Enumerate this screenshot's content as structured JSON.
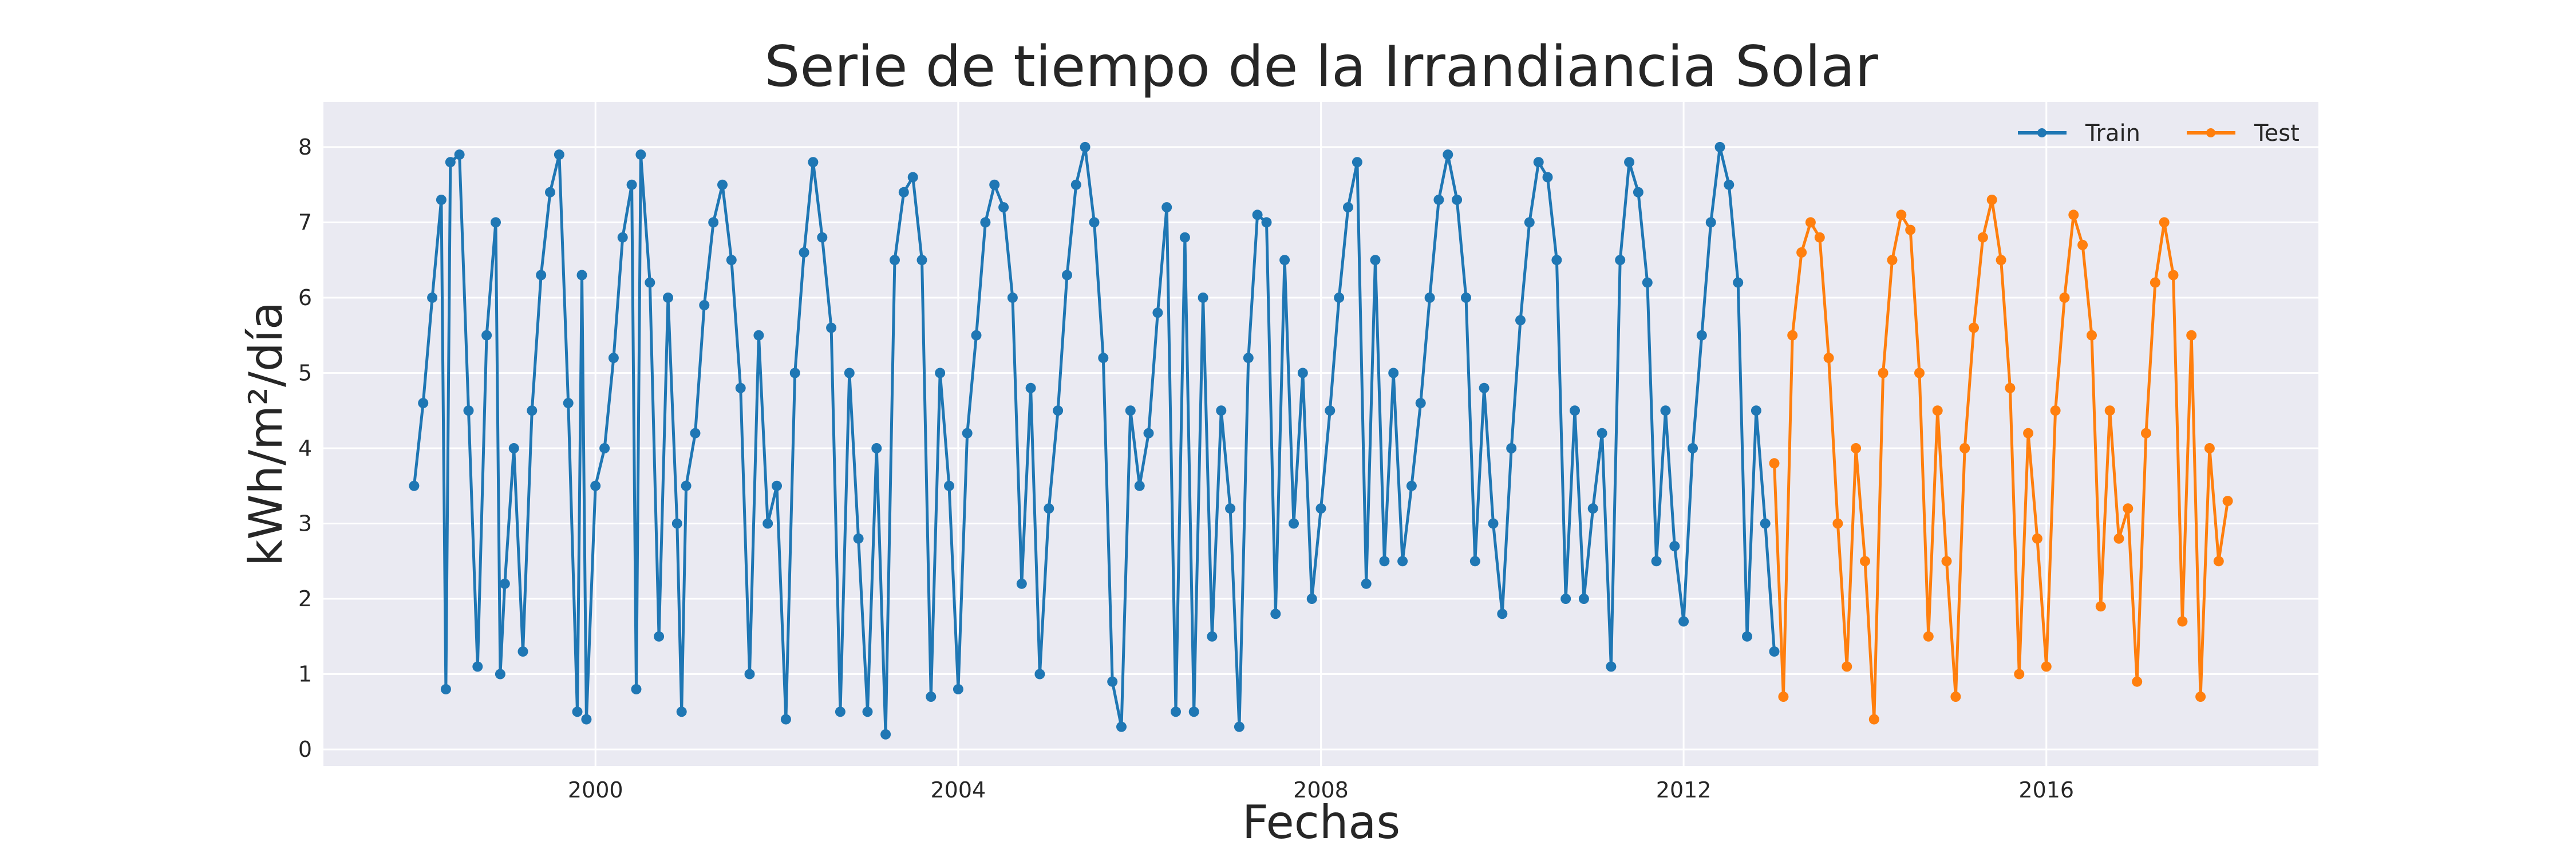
{
  "chart_data": {
    "type": "line",
    "title": "Serie de tiempo de la Irrandiancia Solar",
    "xlabel": "Fechas",
    "ylabel": "kWh/m²/día",
    "xlim": [
      1997.0,
      2019.0
    ],
    "ylim": [
      -0.22,
      8.6
    ],
    "x_ticks": [
      2000,
      2004,
      2008,
      2012,
      2016
    ],
    "x_tick_labels": [
      "2000",
      "2004",
      "2008",
      "2012",
      "2016"
    ],
    "y_ticks": [
      0,
      1,
      2,
      3,
      4,
      5,
      6,
      7,
      8
    ],
    "y_tick_labels": [
      "0",
      "1",
      "2",
      "3",
      "4",
      "5",
      "6",
      "7",
      "8"
    ],
    "grid": true,
    "legend_position": "top-right",
    "x_units": "years (decimal)",
    "series": [
      {
        "name": "Train",
        "color": "#1f77b4",
        "marker": "circle",
        "x_range": [
          1998.0,
          2013.0
        ],
        "points": [
          [
            1998.0,
            3.5
          ],
          [
            1998.1,
            4.6
          ],
          [
            1998.2,
            6.0
          ],
          [
            1998.3,
            7.3
          ],
          [
            1998.35,
            0.8
          ],
          [
            1998.4,
            7.8
          ],
          [
            1998.5,
            7.9
          ],
          [
            1998.6,
            4.5
          ],
          [
            1998.7,
            1.1
          ],
          [
            1998.8,
            5.5
          ],
          [
            1998.9,
            7.0
          ],
          [
            1998.95,
            1.0
          ],
          [
            1999.0,
            2.2
          ],
          [
            1999.1,
            4.0
          ],
          [
            1999.2,
            1.3
          ],
          [
            1999.3,
            4.5
          ],
          [
            1999.4,
            6.3
          ],
          [
            1999.5,
            7.4
          ],
          [
            1999.6,
            7.9
          ],
          [
            1999.7,
            4.6
          ],
          [
            1999.8,
            0.5
          ],
          [
            1999.85,
            6.3
          ],
          [
            1999.9,
            0.4
          ],
          [
            2000.0,
            3.5
          ],
          [
            2000.1,
            4.0
          ],
          [
            2000.2,
            5.2
          ],
          [
            2000.3,
            6.8
          ],
          [
            2000.4,
            7.5
          ],
          [
            2000.45,
            0.8
          ],
          [
            2000.5,
            7.9
          ],
          [
            2000.6,
            6.2
          ],
          [
            2000.7,
            1.5
          ],
          [
            2000.8,
            6.0
          ],
          [
            2000.9,
            3.0
          ],
          [
            2000.95,
            0.5
          ],
          [
            2001.0,
            3.5
          ],
          [
            2001.1,
            4.2
          ],
          [
            2001.2,
            5.9
          ],
          [
            2001.3,
            7.0
          ],
          [
            2001.4,
            7.5
          ],
          [
            2001.5,
            6.5
          ],
          [
            2001.6,
            4.8
          ],
          [
            2001.7,
            1.0
          ],
          [
            2001.8,
            5.5
          ],
          [
            2001.9,
            3.0
          ],
          [
            2002.0,
            3.5
          ],
          [
            2002.1,
            0.4
          ],
          [
            2002.2,
            5.0
          ],
          [
            2002.3,
            6.6
          ],
          [
            2002.4,
            7.8
          ],
          [
            2002.5,
            6.8
          ],
          [
            2002.6,
            5.6
          ],
          [
            2002.7,
            0.5
          ],
          [
            2002.8,
            5.0
          ],
          [
            2002.9,
            2.8
          ],
          [
            2003.0,
            0.5
          ],
          [
            2003.1,
            4.0
          ],
          [
            2003.2,
            0.2
          ],
          [
            2003.3,
            6.5
          ],
          [
            2003.4,
            7.4
          ],
          [
            2003.5,
            7.6
          ],
          [
            2003.6,
            6.5
          ],
          [
            2003.7,
            0.7
          ],
          [
            2003.8,
            5.0
          ],
          [
            2003.9,
            3.5
          ],
          [
            2004.0,
            0.8
          ],
          [
            2004.1,
            4.2
          ],
          [
            2004.2,
            5.5
          ],
          [
            2004.3,
            7.0
          ],
          [
            2004.4,
            7.5
          ],
          [
            2004.5,
            7.2
          ],
          [
            2004.6,
            6.0
          ],
          [
            2004.7,
            2.2
          ],
          [
            2004.8,
            4.8
          ],
          [
            2004.9,
            1.0
          ],
          [
            2005.0,
            3.2
          ],
          [
            2005.1,
            4.5
          ],
          [
            2005.2,
            6.3
          ],
          [
            2005.3,
            7.5
          ],
          [
            2005.4,
            8.0
          ],
          [
            2005.5,
            7.0
          ],
          [
            2005.6,
            5.2
          ],
          [
            2005.7,
            0.9
          ],
          [
            2005.8,
            0.3
          ],
          [
            2005.9,
            4.5
          ],
          [
            2006.0,
            3.5
          ],
          [
            2006.1,
            4.2
          ],
          [
            2006.2,
            5.8
          ],
          [
            2006.3,
            7.2
          ],
          [
            2006.4,
            0.5
          ],
          [
            2006.5,
            6.8
          ],
          [
            2006.6,
            0.5
          ],
          [
            2006.7,
            6.0
          ],
          [
            2006.8,
            1.5
          ],
          [
            2006.9,
            4.5
          ],
          [
            2007.0,
            3.2
          ],
          [
            2007.1,
            0.3
          ],
          [
            2007.2,
            5.2
          ],
          [
            2007.3,
            7.1
          ],
          [
            2007.4,
            7.0
          ],
          [
            2007.5,
            1.8
          ],
          [
            2007.6,
            6.5
          ],
          [
            2007.7,
            3.0
          ],
          [
            2007.8,
            5.0
          ],
          [
            2007.9,
            2.0
          ],
          [
            2008.0,
            3.2
          ],
          [
            2008.1,
            4.5
          ],
          [
            2008.2,
            6.0
          ],
          [
            2008.3,
            7.2
          ],
          [
            2008.4,
            7.8
          ],
          [
            2008.5,
            2.2
          ],
          [
            2008.6,
            6.5
          ],
          [
            2008.7,
            2.5
          ],
          [
            2008.8,
            5.0
          ],
          [
            2008.9,
            2.5
          ],
          [
            2009.0,
            3.5
          ],
          [
            2009.1,
            4.6
          ],
          [
            2009.2,
            6.0
          ],
          [
            2009.3,
            7.3
          ],
          [
            2009.4,
            7.9
          ],
          [
            2009.5,
            7.3
          ],
          [
            2009.6,
            6.0
          ],
          [
            2009.7,
            2.5
          ],
          [
            2009.8,
            4.8
          ],
          [
            2009.9,
            3.0
          ],
          [
            2010.0,
            1.8
          ],
          [
            2010.1,
            4.0
          ],
          [
            2010.2,
            5.7
          ],
          [
            2010.3,
            7.0
          ],
          [
            2010.4,
            7.8
          ],
          [
            2010.5,
            7.6
          ],
          [
            2010.6,
            6.5
          ],
          [
            2010.7,
            2.0
          ],
          [
            2010.8,
            4.5
          ],
          [
            2010.9,
            2.0
          ],
          [
            2011.0,
            3.2
          ],
          [
            2011.1,
            4.2
          ],
          [
            2011.2,
            1.1
          ],
          [
            2011.3,
            6.5
          ],
          [
            2011.4,
            7.8
          ],
          [
            2011.5,
            7.4
          ],
          [
            2011.6,
            6.2
          ],
          [
            2011.7,
            2.5
          ],
          [
            2011.8,
            4.5
          ],
          [
            2011.9,
            2.7
          ],
          [
            2012.0,
            1.7
          ],
          [
            2012.1,
            4.0
          ],
          [
            2012.2,
            5.5
          ],
          [
            2012.3,
            7.0
          ],
          [
            2012.4,
            8.0
          ],
          [
            2012.5,
            7.5
          ],
          [
            2012.6,
            6.2
          ],
          [
            2012.7,
            1.5
          ],
          [
            2012.8,
            4.5
          ],
          [
            2012.9,
            3.0
          ],
          [
            2013.0,
            1.3
          ]
        ]
      },
      {
        "name": "Test",
        "color": "#ff7f0e",
        "marker": "circle",
        "x_range": [
          2013.0,
          2018.0
        ],
        "points": [
          [
            2013.0,
            3.8
          ],
          [
            2013.1,
            0.7
          ],
          [
            2013.2,
            5.5
          ],
          [
            2013.3,
            6.6
          ],
          [
            2013.4,
            7.0
          ],
          [
            2013.5,
            6.8
          ],
          [
            2013.6,
            5.2
          ],
          [
            2013.7,
            3.0
          ],
          [
            2013.8,
            1.1
          ],
          [
            2013.9,
            4.0
          ],
          [
            2014.0,
            2.5
          ],
          [
            2014.1,
            0.4
          ],
          [
            2014.2,
            5.0
          ],
          [
            2014.3,
            6.5
          ],
          [
            2014.4,
            7.1
          ],
          [
            2014.5,
            6.9
          ],
          [
            2014.6,
            5.0
          ],
          [
            2014.7,
            1.5
          ],
          [
            2014.8,
            4.5
          ],
          [
            2014.9,
            2.5
          ],
          [
            2015.0,
            0.7
          ],
          [
            2015.1,
            4.0
          ],
          [
            2015.2,
            5.6
          ],
          [
            2015.3,
            6.8
          ],
          [
            2015.4,
            7.3
          ],
          [
            2015.5,
            6.5
          ],
          [
            2015.6,
            4.8
          ],
          [
            2015.7,
            1.0
          ],
          [
            2015.8,
            4.2
          ],
          [
            2015.9,
            2.8
          ],
          [
            2016.0,
            1.1
          ],
          [
            2016.1,
            4.5
          ],
          [
            2016.2,
            6.0
          ],
          [
            2016.3,
            7.1
          ],
          [
            2016.4,
            6.7
          ],
          [
            2016.5,
            5.5
          ],
          [
            2016.6,
            1.9
          ],
          [
            2016.7,
            4.5
          ],
          [
            2016.8,
            2.8
          ],
          [
            2016.9,
            3.2
          ],
          [
            2017.0,
            0.9
          ],
          [
            2017.1,
            4.2
          ],
          [
            2017.2,
            6.2
          ],
          [
            2017.3,
            7.0
          ],
          [
            2017.4,
            6.3
          ],
          [
            2017.5,
            1.7
          ],
          [
            2017.6,
            5.5
          ],
          [
            2017.7,
            0.7
          ],
          [
            2017.8,
            4.0
          ],
          [
            2017.9,
            2.5
          ],
          [
            2018.0,
            3.3
          ]
        ]
      }
    ]
  }
}
